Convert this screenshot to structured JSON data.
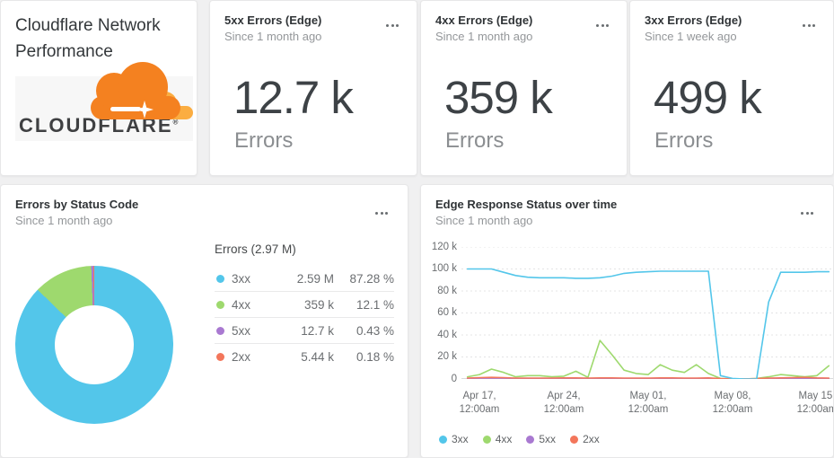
{
  "title_card": {
    "title": "Cloudflare Network Performance",
    "logo": {
      "wordmark": "CLOUDFLARE",
      "registered": "®",
      "cloud_color": "#f48120",
      "cloud_light_color": "#fbad41"
    }
  },
  "icons": {
    "overflow_menu": "three-dots-horizontal",
    "sparkle": "four-point-star"
  },
  "colors": {
    "page_bg": "#f0f0f1",
    "card_bg": "#ffffff",
    "accent_blue": "#53c6ea",
    "accent_green": "#9ed96e",
    "accent_purple": "#a979d1",
    "accent_orange": "#f3765b",
    "text_dark": "#303437",
    "text_gray": "#94979a"
  },
  "stat_cards": [
    {
      "title": "5xx Errors (Edge)",
      "subtitle": "Since 1 month ago",
      "value": "12.7 k",
      "unit": "Errors"
    },
    {
      "title": "4xx Errors (Edge)",
      "subtitle": "Since 1 month ago",
      "value": "359 k",
      "unit": "Errors"
    },
    {
      "title": "3xx Errors (Edge)",
      "subtitle": "Since 1 week ago",
      "value": "499 k",
      "unit": "Errors"
    }
  ],
  "chart_data": [
    {
      "type": "pie",
      "donut": true,
      "title": "Errors by Status Code",
      "subtitle": "Since 1 month ago",
      "total_label": "Errors (2.97 M)",
      "labels": [
        "3xx",
        "4xx",
        "5xx",
        "2xx"
      ],
      "values_text": [
        "2.59 M",
        "359 k",
        "12.7 k",
        "5.44 k"
      ],
      "values": [
        2590000,
        359000,
        12700,
        5440
      ],
      "percents": [
        87.28,
        12.1,
        0.43,
        0.18
      ],
      "percents_text": [
        "87.28 %",
        "12.1 %",
        "0.43 %",
        "0.18 %"
      ],
      "colors": [
        "#53c6ea",
        "#9ed96e",
        "#a979d1",
        "#f3765b"
      ],
      "legend_position": "right-table"
    },
    {
      "type": "line",
      "title": "Edge Response Status over time",
      "subtitle": "Since 1 month ago",
      "ylim_k": [
        0,
        120
      ],
      "grid_levels_k": [
        20,
        40,
        60,
        80,
        100,
        120
      ],
      "grid": "dashed-horizontal",
      "ytick_labels": [
        "120 k",
        "100 k",
        "80 k",
        "60 k",
        "40 k",
        "20 k",
        "0"
      ],
      "xtick_labels": [
        "Apr 17,\n12:00am",
        "Apr 24,\n12:00am",
        "May 01,\n12:00am",
        "May 08,\n12:00am",
        "May 15,\n12:00am"
      ],
      "xtick_day_index": [
        1,
        8,
        15,
        22,
        29
      ],
      "x": [
        "Apr 16",
        "Apr 17",
        "Apr 18",
        "Apr 19",
        "Apr 20",
        "Apr 21",
        "Apr 22",
        "Apr 23",
        "Apr 24",
        "Apr 25",
        "Apr 26",
        "Apr 27",
        "Apr 28",
        "Apr 29",
        "Apr 30",
        "May 01",
        "May 02",
        "May 03",
        "May 04",
        "May 05",
        "May 06",
        "May 07",
        "May 08",
        "May 09",
        "May 10",
        "May 11",
        "May 12",
        "May 13",
        "May 14",
        "May 15",
        "May 16"
      ],
      "series": [
        {
          "name": "3xx",
          "color": "#53c6ea",
          "values_k": [
            100,
            100,
            100,
            97,
            94,
            92.5,
            92,
            92,
            92,
            91.5,
            91.5,
            92,
            93.5,
            96,
            97,
            97.5,
            98,
            98,
            98,
            98,
            98,
            3,
            0.5,
            0,
            0,
            70,
            97,
            97,
            97,
            97.5,
            97.5
          ]
        },
        {
          "name": "4xx",
          "color": "#9ed96e",
          "values_k": [
            2,
            4,
            9,
            6,
            2,
            3,
            3,
            2,
            2.5,
            7,
            1.5,
            35,
            22,
            8,
            5,
            4,
            13,
            8,
            6,
            13,
            5,
            0.5,
            0,
            0,
            0.5,
            2,
            4,
            3,
            2,
            3,
            12
          ]
        },
        {
          "name": "5xx",
          "color": "#a979d1",
          "values_k": [
            0.1,
            0.1,
            0.1,
            0.1,
            0.1,
            0.1,
            0.1,
            0.1,
            0.1,
            0.1,
            0.1,
            0.1,
            0.1,
            0.1,
            0.1,
            0.1,
            0.1,
            0.1,
            0.1,
            0.1,
            0.1,
            0.05,
            0.05,
            0.05,
            0.05,
            0.1,
            0.1,
            0.3,
            0.5,
            0.2,
            0.1
          ]
        },
        {
          "name": "2xx",
          "color": "#f3765b",
          "values_k": [
            0.8,
            1.2,
            1.5,
            1.2,
            0.8,
            0.8,
            0.8,
            0.8,
            1,
            1,
            0.8,
            1,
            1,
            0.8,
            0.8,
            0.8,
            1,
            1,
            0.8,
            0.8,
            1,
            0.3,
            0.1,
            0.1,
            0.3,
            0.8,
            1,
            1.2,
            1.5,
            1,
            0.8
          ]
        }
      ],
      "draw_order": [
        2,
        1,
        3,
        0
      ],
      "legend": [
        "3xx",
        "4xx",
        "5xx",
        "2xx"
      ],
      "legend_position": "bottom-left"
    }
  ]
}
